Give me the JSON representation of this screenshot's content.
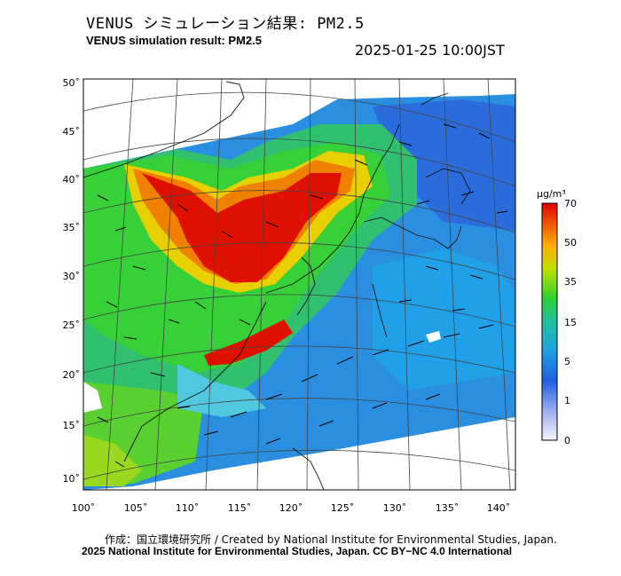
{
  "title_jp": "VENUS シミュレーション結果: PM2.5",
  "title_en": "VENUS simulation result: PM2.5",
  "datetime": "2025-01-25 10:00JST",
  "lat_ticks": [
    "50˚",
    "45˚",
    "40˚",
    "35˚",
    "30˚",
    "25˚",
    "20˚",
    "15˚",
    "10˚"
  ],
  "lon_ticks": [
    "100˚",
    "105˚",
    "110˚",
    "115˚",
    "120˚",
    "125˚",
    "130˚",
    "135˚",
    "140˚"
  ],
  "colorbar": {
    "unit": "μg/m³",
    "labels": [
      "70",
      "50",
      "35",
      "15",
      "5",
      "1",
      "0"
    ],
    "colors": [
      "#e00000",
      "#f06000",
      "#ffb000",
      "#f0e000",
      "#a0e000",
      "#30d030",
      "#20c0a0",
      "#20a0e0",
      "#3070e0",
      "#90a0e8",
      "#f4f4ff"
    ]
  },
  "credit_line1": "作成：国立環境研究所 / Created by National Institute for Environmental Studies, Japan.",
  "credit_line2": "2025 National Institute for Environmental Studies, Japan. CC BY−NC 4.0 International"
}
